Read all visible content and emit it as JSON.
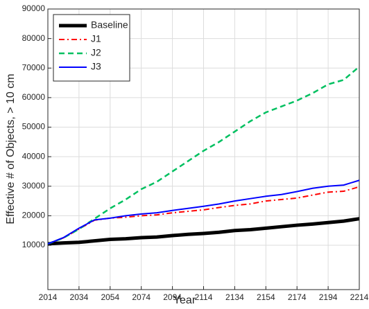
{
  "chart_data": {
    "type": "line",
    "xlabel": "Year",
    "ylabel": "Effective # of Objects, > 10 cm",
    "x": [
      2014,
      2024,
      2034,
      2044,
      2054,
      2064,
      2074,
      2084,
      2094,
      2104,
      2114,
      2124,
      2134,
      2144,
      2154,
      2164,
      2174,
      2184,
      2194,
      2204,
      2214
    ],
    "series": [
      {
        "name": "Baseline",
        "color": "#000000",
        "style": "solid",
        "width": 5,
        "values": [
          10500,
          10800,
          11000,
          11500,
          12000,
          12200,
          12600,
          12800,
          13300,
          13700,
          14000,
          14400,
          15000,
          15300,
          15800,
          16300,
          16800,
          17200,
          17700,
          18200,
          19000
        ]
      },
      {
        "name": "J1",
        "color": "#ff0000",
        "style": "dashdot",
        "width": 2,
        "values": [
          10500,
          12500,
          15500,
          18500,
          19200,
          19500,
          20000,
          20300,
          21000,
          21500,
          22000,
          22800,
          23500,
          24000,
          25000,
          25500,
          26000,
          27000,
          28000,
          28300,
          29800
        ]
      },
      {
        "name": "J2",
        "color": "#00c060",
        "style": "dashed",
        "width": 2.5,
        "values": [
          10500,
          12500,
          15500,
          19000,
          22500,
          25500,
          29000,
          31500,
          35000,
          38500,
          42000,
          45000,
          48500,
          52000,
          55000,
          57000,
          59000,
          61500,
          64500,
          66000,
          70500
        ]
      },
      {
        "name": "J3",
        "color": "#0000ff",
        "style": "solid",
        "width": 2,
        "values": [
          10500,
          12600,
          15800,
          18600,
          19200,
          20000,
          20600,
          21000,
          21800,
          22500,
          23200,
          24000,
          25000,
          25800,
          26600,
          27200,
          28200,
          29300,
          30000,
          30400,
          32000
        ]
      }
    ],
    "xlim": [
      2014,
      2214
    ],
    "xticks": [
      2014,
      2034,
      2054,
      2074,
      2094,
      2114,
      2134,
      2154,
      2174,
      2194,
      2214
    ],
    "ylim": [
      -5000,
      90000
    ],
    "yticks": [
      10000,
      20000,
      30000,
      40000,
      50000,
      60000,
      70000,
      80000,
      90000
    ],
    "grid": true,
    "legend": "top-left"
  }
}
